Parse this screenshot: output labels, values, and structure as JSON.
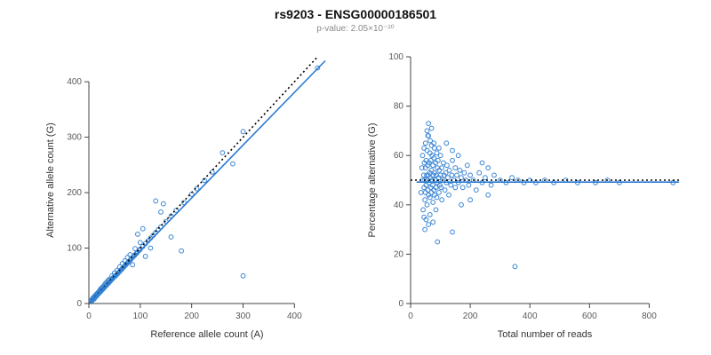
{
  "header": {
    "title": "rs9203 - ENSG00000186501",
    "subtitle": "p-value: 2.05×10⁻¹⁰"
  },
  "chart_data": [
    {
      "type": "scatter",
      "name": "allele-count-scatter",
      "title": "",
      "xlabel": "Reference allele count (A)",
      "ylabel": "Alternative allele count (G)",
      "xlim": [
        0,
        460
      ],
      "ylim": [
        0,
        445
      ],
      "xticks": [
        0,
        100,
        200,
        300,
        400
      ],
      "yticks": [
        0,
        100,
        200,
        300,
        400
      ],
      "grid": false,
      "legend": "none",
      "point_color": "#3a86d4",
      "lines": [
        {
          "x1": 0,
          "y1": 0,
          "x2": 443,
          "y2": 443,
          "color": "#000000",
          "dash": "2,3",
          "width": 1.6,
          "meaning": "identity-line"
        },
        {
          "x1": 0,
          "y1": 0,
          "x2": 460,
          "y2": 438,
          "color": "#2b7bd3",
          "dash": "",
          "width": 1.6,
          "meaning": "fit-line"
        }
      ],
      "points": [
        [
          5,
          6
        ],
        [
          6,
          5
        ],
        [
          7,
          8
        ],
        [
          8,
          7
        ],
        [
          8,
          10
        ],
        [
          9,
          9
        ],
        [
          10,
          8
        ],
        [
          10,
          12
        ],
        [
          11,
          10
        ],
        [
          12,
          11
        ],
        [
          12,
          14
        ],
        [
          13,
          12
        ],
        [
          14,
          13
        ],
        [
          14,
          16
        ],
        [
          15,
          14
        ],
        [
          15,
          17
        ],
        [
          16,
          15
        ],
        [
          16,
          18
        ],
        [
          17,
          16
        ],
        [
          18,
          17
        ],
        [
          18,
          20
        ],
        [
          19,
          18
        ],
        [
          20,
          19
        ],
        [
          20,
          22
        ],
        [
          21,
          20
        ],
        [
          22,
          21
        ],
        [
          22,
          25
        ],
        [
          23,
          22
        ],
        [
          24,
          23
        ],
        [
          24,
          27
        ],
        [
          25,
          24
        ],
        [
          25,
          28
        ],
        [
          26,
          25
        ],
        [
          27,
          26
        ],
        [
          27,
          30
        ],
        [
          28,
          27
        ],
        [
          29,
          28
        ],
        [
          30,
          29
        ],
        [
          30,
          33
        ],
        [
          31,
          30
        ],
        [
          32,
          31
        ],
        [
          32,
          36
        ],
        [
          33,
          32
        ],
        [
          34,
          33
        ],
        [
          35,
          34
        ],
        [
          35,
          39
        ],
        [
          36,
          35
        ],
        [
          37,
          36
        ],
        [
          38,
          37
        ],
        [
          38,
          42
        ],
        [
          39,
          38
        ],
        [
          40,
          39
        ],
        [
          40,
          44
        ],
        [
          41,
          40
        ],
        [
          42,
          41
        ],
        [
          43,
          42
        ],
        [
          44,
          43
        ],
        [
          45,
          44
        ],
        [
          45,
          50
        ],
        [
          46,
          45
        ],
        [
          47,
          46
        ],
        [
          48,
          47
        ],
        [
          49,
          48
        ],
        [
          50,
          49
        ],
        [
          50,
          55
        ],
        [
          52,
          50
        ],
        [
          54,
          52
        ],
        [
          55,
          60
        ],
        [
          56,
          54
        ],
        [
          58,
          56
        ],
        [
          60,
          58
        ],
        [
          60,
          66
        ],
        [
          62,
          60
        ],
        [
          64,
          62
        ],
        [
          65,
          72
        ],
        [
          66,
          64
        ],
        [
          68,
          66
        ],
        [
          70,
          68
        ],
        [
          70,
          77
        ],
        [
          72,
          70
        ],
        [
          74,
          72
        ],
        [
          75,
          83
        ],
        [
          76,
          74
        ],
        [
          78,
          76
        ],
        [
          80,
          78
        ],
        [
          80,
          88
        ],
        [
          82,
          80
        ],
        [
          85,
          83
        ],
        [
          85,
          70
        ],
        [
          88,
          86
        ],
        [
          90,
          88
        ],
        [
          90,
          99
        ],
        [
          92,
          90
        ],
        [
          95,
          93
        ],
        [
          95,
          125
        ],
        [
          98,
          96
        ],
        [
          100,
          98
        ],
        [
          100,
          110
        ],
        [
          105,
          103
        ],
        [
          105,
          135
        ],
        [
          110,
          108
        ],
        [
          110,
          85
        ],
        [
          115,
          113
        ],
        [
          120,
          118
        ],
        [
          120,
          100
        ],
        [
          125,
          123
        ],
        [
          130,
          128
        ],
        [
          130,
          185
        ],
        [
          135,
          133
        ],
        [
          140,
          138
        ],
        [
          140,
          165
        ],
        [
          145,
          180
        ],
        [
          150,
          148
        ],
        [
          160,
          158
        ],
        [
          160,
          120
        ],
        [
          170,
          168
        ],
        [
          180,
          95
        ],
        [
          185,
          182
        ],
        [
          200,
          197
        ],
        [
          210,
          207
        ],
        [
          225,
          222
        ],
        [
          240,
          237
        ],
        [
          260,
          272
        ],
        [
          280,
          252
        ],
        [
          300,
          310
        ],
        [
          300,
          50
        ],
        [
          445,
          425
        ]
      ]
    },
    {
      "type": "scatter",
      "name": "percentage-alternative-scatter",
      "title": "",
      "xlabel": "Total number of reads",
      "ylabel": "Percentage alternative (G)",
      "xlim": [
        0,
        900
      ],
      "ylim": [
        0,
        100
      ],
      "xticks": [
        0,
        200,
        400,
        600,
        800
      ],
      "yticks": [
        0,
        20,
        40,
        60,
        80,
        100
      ],
      "grid": false,
      "legend": "none",
      "point_color": "#3a86d4",
      "lines": [
        {
          "x1": 0,
          "y1": 50,
          "x2": 900,
          "y2": 50,
          "color": "#000000",
          "dash": "2,3",
          "width": 1.6,
          "meaning": "expected-50pct-line"
        },
        {
          "x1": 20,
          "y1": 49.2,
          "x2": 900,
          "y2": 49.2,
          "color": "#2b7bd3",
          "dash": "",
          "width": 1.6,
          "meaning": "fit-line"
        }
      ],
      "points": [
        [
          35,
          45
        ],
        [
          38,
          55
        ],
        [
          40,
          50
        ],
        [
          40,
          60
        ],
        [
          42,
          38
        ],
        [
          44,
          52
        ],
        [
          45,
          47
        ],
        [
          45,
          63
        ],
        [
          45,
          35
        ],
        [
          46,
          57
        ],
        [
          48,
          42
        ],
        [
          48,
          50
        ],
        [
          48,
          30
        ],
        [
          50,
          55
        ],
        [
          50,
          45
        ],
        [
          50,
          65
        ],
        [
          52,
          48
        ],
        [
          52,
          58
        ],
        [
          52,
          34
        ],
        [
          54,
          52
        ],
        [
          55,
          40
        ],
        [
          55,
          62
        ],
        [
          55,
          70
        ],
        [
          56,
          50
        ],
        [
          58,
          46
        ],
        [
          58,
          56
        ],
        [
          58,
          68
        ],
        [
          60,
          52
        ],
        [
          60,
          44
        ],
        [
          60,
          68
        ],
        [
          60,
          73
        ],
        [
          60,
          32
        ],
        [
          62,
          57
        ],
        [
          62,
          49
        ],
        [
          64,
          53
        ],
        [
          65,
          43
        ],
        [
          65,
          61
        ],
        [
          65,
          36
        ],
        [
          66,
          51
        ],
        [
          66,
          66
        ],
        [
          68,
          47
        ],
        [
          68,
          58
        ],
        [
          70,
          54
        ],
        [
          70,
          45
        ],
        [
          70,
          64
        ],
        [
          70,
          71
        ],
        [
          72,
          50
        ],
        [
          72,
          60
        ],
        [
          74,
          48
        ],
        [
          75,
          56
        ],
        [
          75,
          41
        ],
        [
          75,
          33
        ],
        [
          76,
          52
        ],
        [
          78,
          46
        ],
        [
          78,
          59
        ],
        [
          78,
          65
        ],
        [
          80,
          53
        ],
        [
          80,
          44
        ],
        [
          80,
          63
        ],
        [
          82,
          50
        ],
        [
          84,
          57
        ],
        [
          85,
          47
        ],
        [
          85,
          38
        ],
        [
          86,
          52
        ],
        [
          88,
          43
        ],
        [
          88,
          61
        ],
        [
          90,
          55
        ],
        [
          90,
          49
        ],
        [
          90,
          25
        ],
        [
          92,
          58
        ],
        [
          94,
          51
        ],
        [
          95,
          45
        ],
        [
          95,
          63
        ],
        [
          96,
          54
        ],
        [
          98,
          48
        ],
        [
          100,
          52
        ],
        [
          100,
          60
        ],
        [
          102,
          47
        ],
        [
          105,
          55
        ],
        [
          105,
          42
        ],
        [
          108,
          50
        ],
        [
          110,
          57
        ],
        [
          112,
          52
        ],
        [
          115,
          46
        ],
        [
          118,
          53
        ],
        [
          120,
          49
        ],
        [
          120,
          65
        ],
        [
          122,
          56
        ],
        [
          125,
          51
        ],
        [
          128,
          44
        ],
        [
          130,
          54
        ],
        [
          135,
          48
        ],
        [
          138,
          52
        ],
        [
          140,
          58
        ],
        [
          140,
          62
        ],
        [
          140,
          29
        ],
        [
          145,
          50
        ],
        [
          150,
          47
        ],
        [
          150,
          55
        ],
        [
          155,
          52
        ],
        [
          160,
          49
        ],
        [
          160,
          60
        ],
        [
          165,
          54
        ],
        [
          170,
          51
        ],
        [
          170,
          40
        ],
        [
          175,
          47
        ],
        [
          180,
          53
        ],
        [
          185,
          50
        ],
        [
          190,
          56
        ],
        [
          195,
          48
        ],
        [
          200,
          52
        ],
        [
          200,
          42
        ],
        [
          210,
          50
        ],
        [
          220,
          46
        ],
        [
          230,
          53
        ],
        [
          240,
          49
        ],
        [
          240,
          57
        ],
        [
          250,
          51
        ],
        [
          260,
          55
        ],
        [
          260,
          44
        ],
        [
          270,
          48
        ],
        [
          280,
          52
        ],
        [
          300,
          50
        ],
        [
          320,
          49
        ],
        [
          340,
          51
        ],
        [
          350,
          15
        ],
        [
          360,
          50
        ],
        [
          380,
          49
        ],
        [
          400,
          50
        ],
        [
          420,
          49
        ],
        [
          450,
          50
        ],
        [
          480,
          49
        ],
        [
          520,
          50
        ],
        [
          560,
          49
        ],
        [
          620,
          49
        ],
        [
          660,
          50
        ],
        [
          700,
          49
        ],
        [
          880,
          49
        ]
      ]
    }
  ]
}
